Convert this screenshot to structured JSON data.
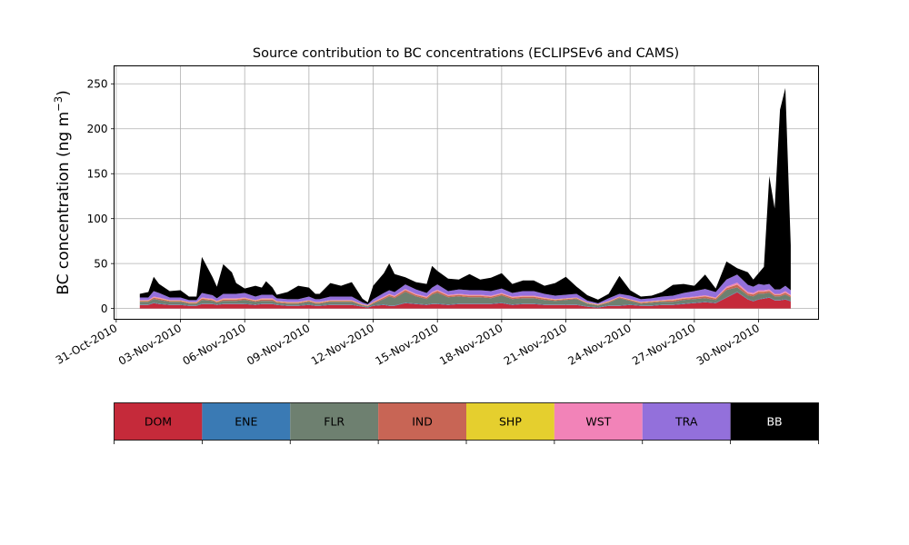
{
  "chart_data": {
    "type": "area",
    "stacked": true,
    "title": "Source contribution to BC concentrations (ECLIPSEv6 and CAMS)",
    "xlabel": "",
    "ylabel_prefix": "BC concentration (ng m",
    "ylabel_exponent": "−3",
    "ylabel_suffix": ")",
    "ylim": [
      -12,
      270
    ],
    "x_unit": "days since 31-Oct-2010",
    "xlim": [
      -0.1,
      32.8
    ],
    "grid": true,
    "y_ticks": [
      0,
      50,
      100,
      150,
      200,
      250
    ],
    "x_ticks": [
      {
        "day": 0,
        "label": "31-Oct-2010"
      },
      {
        "day": 3,
        "label": "03-Nov-2010"
      },
      {
        "day": 6,
        "label": "06-Nov-2010"
      },
      {
        "day": 9,
        "label": "09-Nov-2010"
      },
      {
        "day": 12,
        "label": "12-Nov-2010"
      },
      {
        "day": 15,
        "label": "15-Nov-2010"
      },
      {
        "day": 18,
        "label": "18-Nov-2010"
      },
      {
        "day": 21,
        "label": "21-Nov-2010"
      },
      {
        "day": 24,
        "label": "24-Nov-2010"
      },
      {
        "day": 27,
        "label": "27-Nov-2010"
      },
      {
        "day": 30,
        "label": "30-Nov-2010"
      }
    ],
    "x": [
      1.1,
      1.5,
      1.75,
      2.0,
      2.5,
      3.0,
      3.4,
      3.75,
      4.0,
      4.5,
      4.7,
      5.0,
      5.4,
      5.6,
      6.0,
      6.5,
      6.8,
      7.0,
      7.3,
      7.5,
      8.0,
      8.5,
      9.0,
      9.3,
      9.5,
      10.0,
      10.5,
      11.0,
      11.5,
      11.75,
      12.0,
      12.5,
      12.75,
      13.0,
      13.5,
      14.0,
      14.5,
      14.75,
      15.0,
      15.5,
      16.0,
      16.5,
      17.0,
      17.5,
      18.0,
      18.5,
      19.0,
      19.5,
      20.0,
      20.5,
      21.0,
      21.5,
      22.0,
      22.5,
      23.0,
      23.5,
      24.0,
      24.5,
      25.0,
      25.5,
      26.0,
      26.5,
      27.0,
      27.5,
      28.0,
      28.5,
      29.0,
      29.5,
      29.75,
      30.0,
      30.25,
      30.5,
      30.75,
      31.0,
      31.25,
      31.5
    ],
    "series": [
      {
        "name": "DOM",
        "color": "#c52a3a",
        "values": [
          4,
          4,
          6,
          5,
          4,
          4,
          3,
          3,
          5,
          5,
          4,
          5,
          5,
          5,
          5,
          4,
          5,
          5,
          5,
          4,
          3,
          3,
          4,
          3,
          3,
          4,
          4,
          4,
          2,
          1,
          3,
          4,
          3,
          3,
          6,
          5,
          4,
          5,
          5,
          4,
          5,
          5,
          5,
          5,
          6,
          4,
          5,
          5,
          4,
          4,
          4,
          4,
          2,
          1,
          3,
          3,
          4,
          3,
          3,
          4,
          4,
          5,
          6,
          7,
          6,
          12,
          18,
          10,
          8,
          10,
          11,
          12,
          9,
          9,
          10,
          8
        ]
      },
      {
        "name": "ENE",
        "color": "#3a7ab4",
        "values": [
          0.5,
          0.5,
          0.5,
          0.5,
          0.5,
          0.5,
          0.5,
          0.5,
          0.5,
          0.5,
          0.5,
          0.5,
          0.5,
          0.5,
          0.5,
          0.5,
          0.5,
          0.5,
          0.5,
          0.5,
          0.5,
          0.5,
          0.5,
          0.5,
          0.5,
          0.5,
          0.5,
          0.5,
          0.5,
          0.5,
          0.5,
          0.5,
          0.5,
          0.5,
          0.5,
          0.5,
          0.5,
          0.5,
          0.5,
          0.5,
          0.5,
          0.5,
          0.5,
          0.5,
          0.5,
          0.5,
          0.5,
          0.5,
          0.5,
          0.5,
          0.5,
          0.5,
          0.5,
          0.5,
          0.5,
          0.5,
          0.5,
          0.5,
          0.5,
          0.5,
          0.5,
          0.5,
          0.5,
          0.5,
          0.5,
          0.5,
          0.5,
          0.5,
          0.5,
          0.5,
          0.5,
          0.5,
          0.5,
          0.5,
          0.5,
          0.5
        ]
      },
      {
        "name": "FLR",
        "color": "#6e8070",
        "values": [
          3,
          3,
          4,
          4,
          3,
          3,
          2,
          2,
          4,
          3,
          2,
          3,
          3,
          3,
          4,
          3,
          3,
          3,
          3,
          2,
          2,
          2,
          3,
          2,
          2,
          3,
          3,
          3,
          1,
          1,
          2,
          6,
          10,
          8,
          12,
          8,
          6,
          10,
          12,
          8,
          8,
          7,
          7,
          6,
          8,
          6,
          6,
          6,
          5,
          4,
          5,
          6,
          3,
          2,
          3,
          8,
          4,
          2,
          3,
          3,
          3,
          4,
          4,
          4,
          3,
          8,
          5,
          4,
          5,
          6,
          5,
          5,
          4,
          4,
          5,
          4
        ]
      },
      {
        "name": "IND",
        "color": "#c86555",
        "values": [
          1,
          1,
          1.5,
          1.5,
          1,
          1,
          1,
          1,
          1.5,
          1,
          1,
          1.5,
          1.5,
          1.5,
          1.5,
          1,
          1.5,
          1.5,
          1.5,
          1,
          1,
          1,
          1,
          1,
          1,
          1,
          1,
          1,
          0.5,
          0.5,
          1,
          1.5,
          1.5,
          1.5,
          2,
          1.5,
          1.5,
          1.5,
          2,
          1.5,
          1.5,
          1.5,
          1.5,
          1.5,
          1.5,
          1.5,
          1.5,
          1.5,
          1.5,
          1,
          1,
          1,
          0.5,
          0.5,
          1,
          1,
          1,
          1,
          1,
          1,
          1.5,
          1.5,
          1.5,
          2,
          1.5,
          2,
          3,
          2,
          2,
          2,
          2,
          2,
          1.5,
          1.5,
          2,
          1.5
        ]
      },
      {
        "name": "SHP",
        "color": "#e5cf2e",
        "values": [
          0.3,
          0.3,
          0.3,
          0.3,
          0.3,
          0.3,
          0.3,
          0.3,
          0.3,
          0.3,
          0.3,
          0.3,
          0.3,
          0.3,
          0.3,
          0.3,
          0.3,
          0.3,
          0.3,
          0.3,
          0.3,
          0.3,
          0.3,
          0.3,
          0.3,
          0.3,
          0.3,
          0.3,
          0.3,
          0.3,
          0.3,
          0.3,
          0.3,
          0.3,
          0.3,
          0.3,
          0.3,
          0.3,
          0.3,
          0.3,
          0.3,
          0.3,
          0.3,
          0.3,
          0.3,
          0.3,
          0.3,
          0.3,
          0.3,
          0.3,
          0.3,
          0.3,
          0.3,
          0.3,
          0.3,
          0.3,
          0.3,
          0.3,
          0.3,
          0.3,
          0.3,
          0.3,
          0.3,
          0.3,
          0.3,
          0.3,
          0.3,
          0.3,
          0.3,
          0.3,
          0.3,
          0.3,
          0.3,
          0.3,
          0.3,
          0.3
        ]
      },
      {
        "name": "WST",
        "color": "#f283b8",
        "values": [
          0.5,
          0.5,
          1,
          1,
          0.5,
          0.5,
          0.5,
          0.5,
          1,
          1,
          0.5,
          1,
          1,
          1,
          1,
          0.5,
          1,
          1,
          1,
          0.5,
          0.5,
          0.5,
          0.5,
          0.5,
          0.5,
          0.5,
          0.5,
          0.5,
          0.5,
          0.5,
          0.5,
          1,
          1,
          1,
          1,
          1,
          1,
          1,
          1,
          1,
          1,
          1,
          1,
          1,
          1,
          1,
          1,
          1,
          1,
          0.5,
          0.5,
          0.5,
          0.5,
          0.5,
          0.5,
          0.5,
          0.5,
          0.5,
          0.5,
          0.5,
          1,
          1,
          1,
          1,
          1,
          1.5,
          2,
          1.5,
          1.5,
          1.5,
          1.5,
          1.5,
          1,
          1,
          1.5,
          1
        ]
      },
      {
        "name": "TRA",
        "color": "#9370db",
        "values": [
          3,
          3,
          6,
          5,
          3,
          3,
          2,
          2,
          5,
          4,
          3,
          5,
          5,
          5,
          5,
          4,
          4,
          4,
          4,
          3,
          3,
          3,
          4,
          3,
          3,
          4,
          4,
          4,
          2,
          1,
          3,
          4,
          4,
          4,
          5,
          5,
          4,
          5,
          6,
          4,
          5,
          5,
          5,
          5,
          5,
          4,
          5,
          5,
          4,
          4,
          4,
          4,
          2,
          1,
          3,
          3,
          4,
          3,
          3,
          4,
          4,
          5,
          6,
          7,
          6,
          8,
          9,
          8,
          7,
          7,
          6,
          6,
          5,
          5,
          6,
          5
        ]
      },
      {
        "name": "BB",
        "color": "#000000",
        "values": [
          4,
          6,
          16,
          10,
          7,
          8,
          4,
          4,
          40,
          20,
          13,
          33,
          24,
          12,
          5,
          12,
          8,
          15,
          8,
          4,
          8,
          15,
          10,
          6,
          6,
          15,
          12,
          16,
          4,
          2,
          15,
          22,
          30,
          20,
          8,
          8,
          10,
          24,
          15,
          14,
          11,
          18,
          12,
          15,
          17,
          10,
          12,
          12,
          9,
          14,
          20,
          8,
          6,
          4,
          5,
          20,
          6,
          3,
          3,
          5,
          12,
          10,
          6,
          16,
          4,
          20,
          7,
          14,
          8,
          12,
          20,
          120,
          90,
          200,
          220,
          50
        ]
      }
    ],
    "legend": [
      {
        "label": "DOM",
        "color": "#c52a3a",
        "text_color": "#000000"
      },
      {
        "label": "ENE",
        "color": "#3a7ab4",
        "text_color": "#000000"
      },
      {
        "label": "FLR",
        "color": "#6e8070",
        "text_color": "#000000"
      },
      {
        "label": "IND",
        "color": "#c86555",
        "text_color": "#000000"
      },
      {
        "label": "SHP",
        "color": "#e5cf2e",
        "text_color": "#000000"
      },
      {
        "label": "WST",
        "color": "#f283b8",
        "text_color": "#000000"
      },
      {
        "label": "TRA",
        "color": "#9370db",
        "text_color": "#000000"
      },
      {
        "label": "BB",
        "color": "#000000",
        "text_color": "#ffffff"
      }
    ],
    "legend_placement": "bottom colorbar"
  }
}
